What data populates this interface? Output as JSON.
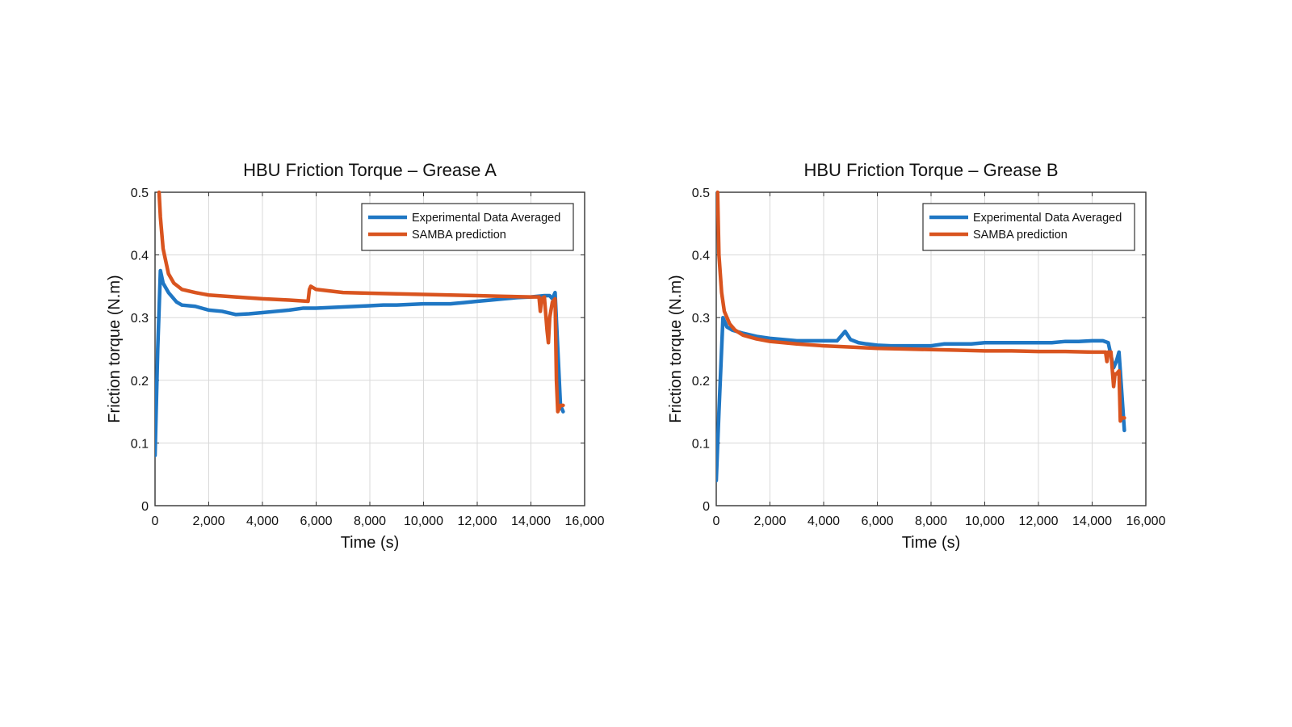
{
  "chart_data": [
    {
      "type": "line",
      "title": "HBU Friction Torque – Grease A",
      "xlabel": "Time (s)",
      "ylabel": "Friction torque (N.m)",
      "xlim": [
        0,
        16000
      ],
      "ylim": [
        0,
        0.5
      ],
      "xticks": [
        0,
        2000,
        4000,
        6000,
        8000,
        10000,
        12000,
        14000,
        16000
      ],
      "xtick_labels": [
        "0",
        "2,000",
        "4,000",
        "6,000",
        "8,000",
        "10,000",
        "12,000",
        "14,000",
        "16,000"
      ],
      "yticks": [
        0,
        0.1,
        0.2,
        0.3,
        0.4,
        0.5
      ],
      "ytick_labels": [
        "0",
        "0.1",
        "0.2",
        "0.3",
        "0.4",
        "0.5"
      ],
      "grid": true,
      "legend_position": "top-right",
      "series": [
        {
          "name": "Experimental Data Averaged",
          "color": "#1f77c4",
          "x": [
            0,
            100,
            200,
            300,
            500,
            800,
            1000,
            1500,
            2000,
            2500,
            3000,
            3500,
            4000,
            4500,
            5000,
            5500,
            6000,
            6500,
            7000,
            7500,
            8000,
            8500,
            9000,
            9500,
            10000,
            10500,
            11000,
            11500,
            12000,
            12500,
            13000,
            13500,
            14000,
            14500,
            14700,
            14800,
            14900,
            15000,
            15100,
            15200
          ],
          "y": [
            0.08,
            0.25,
            0.375,
            0.355,
            0.34,
            0.325,
            0.32,
            0.318,
            0.312,
            0.31,
            0.305,
            0.306,
            0.308,
            0.31,
            0.312,
            0.315,
            0.315,
            0.316,
            0.317,
            0.318,
            0.319,
            0.32,
            0.32,
            0.321,
            0.322,
            0.322,
            0.322,
            0.324,
            0.326,
            0.328,
            0.33,
            0.332,
            0.333,
            0.335,
            0.335,
            0.33,
            0.34,
            0.25,
            0.16,
            0.15
          ]
        },
        {
          "name": "SAMBA prediction",
          "color": "#d9541f",
          "x": [
            150,
            200,
            300,
            500,
            700,
            1000,
            1500,
            2000,
            3000,
            4000,
            5000,
            5700,
            5750,
            5800,
            6000,
            7000,
            8000,
            9000,
            10000,
            11000,
            12000,
            13000,
            14000,
            14300,
            14350,
            14400,
            14500,
            14600,
            14650,
            14700,
            14800,
            14900,
            14950,
            15000,
            15100,
            15200
          ],
          "y": [
            0.5,
            0.46,
            0.41,
            0.37,
            0.355,
            0.345,
            0.34,
            0.336,
            0.333,
            0.33,
            0.328,
            0.326,
            0.345,
            0.35,
            0.345,
            0.34,
            0.339,
            0.338,
            0.337,
            0.336,
            0.335,
            0.334,
            0.333,
            0.333,
            0.31,
            0.33,
            0.333,
            0.28,
            0.26,
            0.3,
            0.325,
            0.33,
            0.2,
            0.15,
            0.16,
            0.16
          ]
        }
      ]
    },
    {
      "type": "line",
      "title": "HBU Friction Torque – Grease B",
      "xlabel": "Time (s)",
      "ylabel": "Friction torque (N.m)",
      "xlim": [
        0,
        16000
      ],
      "ylim": [
        0,
        0.5
      ],
      "xticks": [
        0,
        2000,
        4000,
        6000,
        8000,
        10000,
        12000,
        14000,
        16000
      ],
      "xtick_labels": [
        "0",
        "2,000",
        "4,000",
        "6,000",
        "8,000",
        "10,000",
        "12,000",
        "14,000",
        "16,000"
      ],
      "yticks": [
        0,
        0.1,
        0.2,
        0.3,
        0.4,
        0.5
      ],
      "ytick_labels": [
        "0",
        "0.1",
        "0.2",
        "0.3",
        "0.4",
        "0.5"
      ],
      "grid": true,
      "legend_position": "top-right",
      "series": [
        {
          "name": "Experimental Data Averaged",
          "color": "#1f77c4",
          "x": [
            0,
            100,
            250,
            400,
            600,
            1000,
            1500,
            2000,
            2500,
            3000,
            3500,
            4000,
            4500,
            4800,
            5000,
            5300,
            5600,
            6000,
            6500,
            7000,
            7500,
            8000,
            8500,
            9000,
            9500,
            10000,
            10500,
            11000,
            11500,
            12000,
            12500,
            13000,
            13500,
            14000,
            14400,
            14600,
            14800,
            14900,
            15000,
            15200
          ],
          "y": [
            0.04,
            0.15,
            0.3,
            0.285,
            0.28,
            0.275,
            0.27,
            0.267,
            0.265,
            0.263,
            0.263,
            0.263,
            0.263,
            0.278,
            0.265,
            0.26,
            0.258,
            0.256,
            0.255,
            0.255,
            0.255,
            0.255,
            0.258,
            0.258,
            0.258,
            0.26,
            0.26,
            0.26,
            0.26,
            0.26,
            0.26,
            0.262,
            0.262,
            0.263,
            0.263,
            0.26,
            0.22,
            0.23,
            0.245,
            0.12
          ]
        },
        {
          "name": "SAMBA prediction",
          "color": "#d9541f",
          "x": [
            50,
            100,
            200,
            300,
            500,
            700,
            1000,
            1500,
            2000,
            3000,
            4000,
            5000,
            6000,
            7000,
            8000,
            9000,
            10000,
            11000,
            12000,
            13000,
            14000,
            14500,
            14550,
            14600,
            14700,
            14800,
            14850,
            14900,
            15000,
            15050,
            15100,
            15200
          ],
          "y": [
            0.5,
            0.4,
            0.34,
            0.31,
            0.29,
            0.28,
            0.272,
            0.266,
            0.262,
            0.258,
            0.255,
            0.253,
            0.251,
            0.25,
            0.249,
            0.248,
            0.247,
            0.247,
            0.246,
            0.246,
            0.245,
            0.245,
            0.23,
            0.245,
            0.245,
            0.19,
            0.21,
            0.21,
            0.215,
            0.135,
            0.14,
            0.14
          ]
        }
      ]
    }
  ]
}
